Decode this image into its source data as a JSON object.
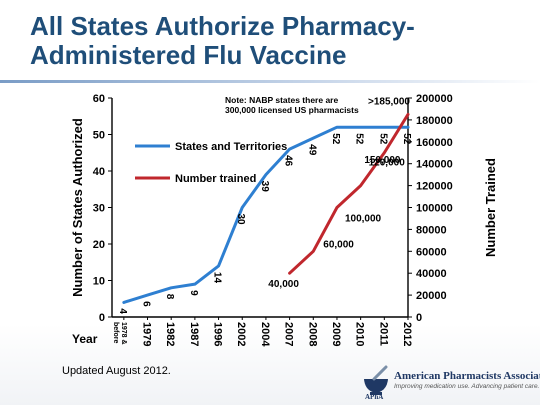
{
  "slide": {
    "title": "All States Authorize Pharmacy-Administered Flu Vaccine",
    "footnote": "Updated August 2012.",
    "logo": {
      "name": "American Pharmacists Association",
      "tagline": "Improving medication use. Advancing patient care.",
      "abbr": "APhA"
    },
    "colors": {
      "title": "#1f4e79",
      "states_series": "#2e7fd1",
      "trained_series": "#c0272d"
    }
  },
  "chart_data": {
    "type": "line",
    "x_axis_label": "Year",
    "categories": [
      "1978 & before",
      "1979",
      "1982",
      "1987",
      "1996",
      "2002",
      "2004",
      "2007",
      "2008",
      "2009",
      "2010",
      "2011",
      "2012"
    ],
    "ylabel": "Number of States Authorized",
    "ylim": [
      0,
      60
    ],
    "yticks": [
      0,
      10,
      20,
      30,
      40,
      50,
      60
    ],
    "y2label": "Number Trained",
    "y2lim": [
      0,
      200000
    ],
    "y2ticks": [
      0,
      20000,
      40000,
      60000,
      80000,
      100000,
      120000,
      140000,
      160000,
      180000,
      200000
    ],
    "note": [
      "Note:  NABP states there are",
      "300,000 licensed US pharmacists"
    ],
    "legend_position": "upper-left",
    "series": [
      {
        "name": "States and Territories",
        "axis": "left",
        "x": [
          "1978 & before",
          "1979",
          "1982",
          "1987",
          "1996",
          "2002",
          "2004",
          "2007",
          "2008",
          "2009",
          "2010",
          "2011",
          "2012"
        ],
        "values": [
          4,
          6,
          8,
          9,
          14,
          30,
          39,
          46,
          49,
          52,
          52,
          52,
          52
        ],
        "labels": [
          "4",
          "6",
          "8",
          "9",
          "14",
          "30",
          "39",
          "46",
          "49",
          "52",
          "52",
          "52",
          "52"
        ]
      },
      {
        "name": "Number trained",
        "axis": "right",
        "x": [
          "2007",
          "2008",
          "2009",
          "2010",
          "2011",
          "2012"
        ],
        "values": [
          40000,
          60000,
          100000,
          120000,
          150000,
          185000
        ],
        "labels": [
          "40,000",
          "60,000",
          "100,000",
          "120,000",
          "150,000",
          ">185,000"
        ]
      }
    ]
  }
}
